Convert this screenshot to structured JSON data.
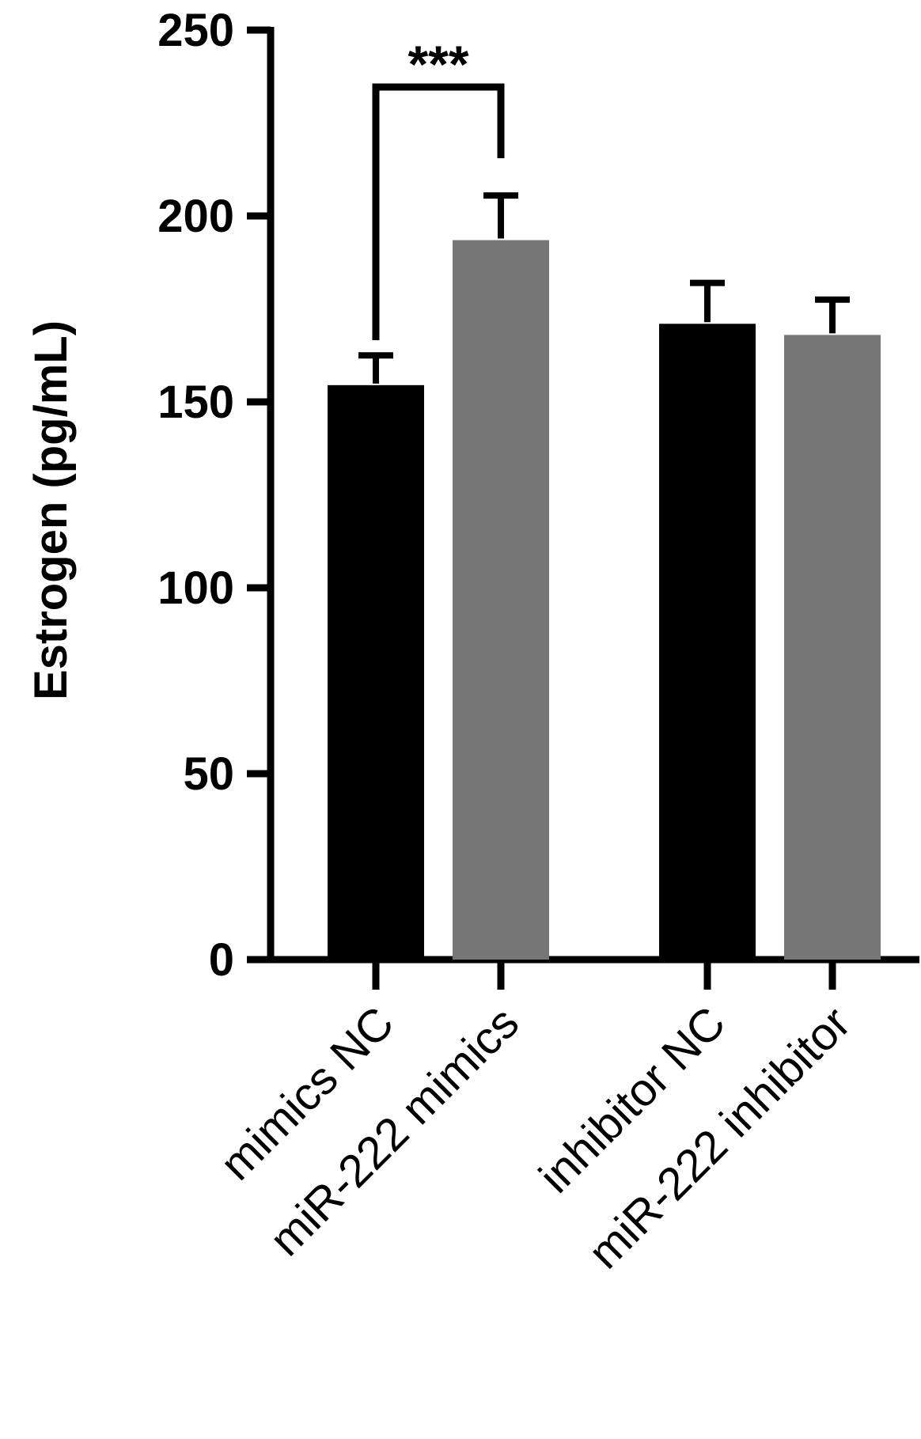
{
  "chart_data": {
    "type": "bar",
    "xlabel": "",
    "ylabel": "Estrogen (pg/mL)",
    "ylim": [
      0,
      250
    ],
    "yticks": [
      0,
      50,
      100,
      150,
      200,
      250
    ],
    "ytick_labels": [
      "0",
      "50",
      "100",
      "150",
      "200",
      "250"
    ],
    "grid": false,
    "legend": "none",
    "categories": [
      "mimics NC",
      "miR-222 mimics",
      "inhibitor NC",
      "miR-222 inhibitor"
    ],
    "values": [
      154.5,
      193.5,
      171,
      168
    ],
    "errors": [
      8,
      12,
      11,
      9.5
    ],
    "bar_colors": [
      "#000000",
      "#767676",
      "#000000",
      "#767676"
    ],
    "significance": [
      {
        "from": "mimics NC",
        "to": "miR-222 mimics",
        "label": "***"
      }
    ]
  }
}
